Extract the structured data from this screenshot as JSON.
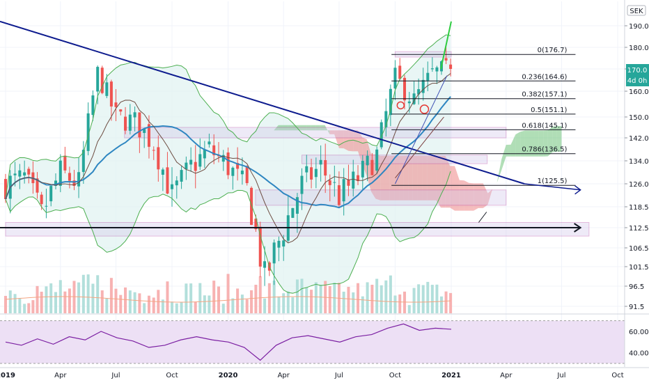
{
  "currency": "SEK",
  "price_tag": {
    "value": "170.0",
    "countdown": "4d 0h",
    "color": "#26a69a"
  },
  "colors": {
    "up": "#26a69a",
    "down": "#ef5350",
    "vol_up": "#b2dfdb",
    "vol_down": "#f7b2b2",
    "bb": "#4caf50",
    "bb_fill": "#e0f2f1",
    "cloud_up": "#6fc27a",
    "cloud_down": "#ef8686",
    "ma_blue": "#2e86c1",
    "ma_dark": "#6d4c41",
    "trend": "#0d1b8e",
    "fib": "#131722",
    "box": "#b03aa0",
    "rsi_line": "#7b1fa2",
    "rsi_bg": "#ede0f5",
    "vol_ma": "#f4a582"
  },
  "chart_data": [
    {
      "type": "line",
      "title": "",
      "xlabel": "",
      "ylabel": "",
      "ylim": [
        90,
        194
      ],
      "y_ticks": [
        190.0,
        180.0,
        170.0,
        160.0,
        150.0,
        142.0,
        134.0,
        126.0,
        118.5,
        112.5,
        106.5,
        101.5,
        96.5,
        91.5
      ],
      "y_tick_labels": [
        "190.0",
        "180.0",
        "170.0",
        "160.0",
        "150.0",
        "142.0",
        "134.0",
        "126.0",
        "118.5",
        "112.5",
        "106.5",
        "101.5",
        "96.5",
        "91.5"
      ],
      "x_labels": [
        {
          "label": "2019",
          "date": "2019-01-01"
        },
        {
          "label": "Apr",
          "date": "2019-04-01"
        },
        {
          "label": "Jul",
          "date": "2019-07-01"
        },
        {
          "label": "Oct",
          "date": "2019-10-01"
        },
        {
          "label": "2020",
          "date": "2020-01-01"
        },
        {
          "label": "Apr",
          "date": "2020-04-01"
        },
        {
          "label": "Jul",
          "date": "2020-07-01"
        },
        {
          "label": "Oct",
          "date": "2020-10-01"
        },
        {
          "label": "2021",
          "date": "2021-01-01"
        },
        {
          "label": "Apr",
          "date": "2021-04-01"
        },
        {
          "label": "Jul",
          "date": "2021-07-01"
        },
        {
          "label": "Oct",
          "date": "2021-10-01"
        }
      ],
      "price_series": [
        {
          "date": "2019-01-01",
          "close": 126
        },
        {
          "date": "2019-02-01",
          "close": 128
        },
        {
          "date": "2019-03-01",
          "close": 116
        },
        {
          "date": "2019-04-01",
          "close": 130
        },
        {
          "date": "2019-05-01",
          "close": 126
        },
        {
          "date": "2019-06-01",
          "close": 168
        },
        {
          "date": "2019-07-01",
          "close": 150
        },
        {
          "date": "2019-08-01",
          "close": 148
        },
        {
          "date": "2019-09-01",
          "close": 140
        },
        {
          "date": "2019-10-01",
          "close": 122
        },
        {
          "date": "2019-11-01",
          "close": 132
        },
        {
          "date": "2019-12-01",
          "close": 138
        },
        {
          "date": "2020-01-01",
          "close": 132
        },
        {
          "date": "2020-02-01",
          "close": 124
        },
        {
          "date": "2020-03-01",
          "close": 98
        },
        {
          "date": "2020-04-01",
          "close": 112
        },
        {
          "date": "2020-05-01",
          "close": 126
        },
        {
          "date": "2020-06-01",
          "close": 132
        },
        {
          "date": "2020-07-01",
          "close": 122
        },
        {
          "date": "2020-08-01",
          "close": 128
        },
        {
          "date": "2020-09-01",
          "close": 136
        },
        {
          "date": "2020-10-01",
          "close": 166
        },
        {
          "date": "2020-11-01",
          "close": 156
        },
        {
          "date": "2020-12-01",
          "close": 168
        },
        {
          "date": "2020-12-31",
          "close": 170
        }
      ],
      "fib_levels": [
        {
          "label": "0(176.7)",
          "value": 176.7
        },
        {
          "label": "0.236(164.6)",
          "value": 164.6
        },
        {
          "label": "0.382(157.1)",
          "value": 157.1
        },
        {
          "label": "0.5(151.1)",
          "value": 151.1
        },
        {
          "label": "0.618(145.1)",
          "value": 145.1
        },
        {
          "label": "0.786(136.5)",
          "value": 136.5
        },
        {
          "label": "1(125.5)",
          "value": 125.5
        }
      ],
      "current_price": 170.0,
      "grid": true
    },
    {
      "type": "line",
      "title": "",
      "ylim": [
        30,
        75
      ],
      "y_ticks": [
        60.0,
        40.0
      ],
      "y_tick_labels": [
        "60.00",
        "40.00"
      ],
      "bands": [
        30,
        70
      ],
      "series": [
        {
          "values": [
            50,
            47,
            53,
            48,
            55,
            52,
            60,
            54,
            51,
            45,
            47,
            52,
            55,
            52,
            50,
            45,
            33,
            47,
            54,
            56,
            53,
            50,
            55,
            57,
            63,
            67,
            61,
            63,
            62
          ]
        }
      ]
    }
  ]
}
